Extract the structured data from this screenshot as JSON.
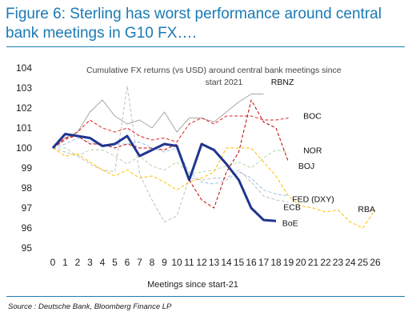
{
  "figure": {
    "title": "Figure 6: Sterling has worst performance around central bank meetings in G10 FX….",
    "source": "Source : Deutsche Bank, Bloomberg Finance LP"
  },
  "colors": {
    "title": "#1a7ab4"
  },
  "chart_data": {
    "type": "line",
    "title": "Cumulative FX returns (vs USD) around central bank meetings since start 2021",
    "title_lines": [
      "Cumulative FX returns (vs USD) around central bank meetings since",
      "start 2021"
    ],
    "xlabel": "Meetings since start-21",
    "ylabel": "",
    "xlim": [
      0,
      26
    ],
    "ylim": [
      95,
      104
    ],
    "x_ticks": [
      0,
      1,
      2,
      3,
      4,
      5,
      6,
      7,
      8,
      9,
      10,
      11,
      12,
      13,
      14,
      15,
      16,
      17,
      18,
      19,
      20,
      21,
      22,
      23,
      24,
      25,
      26
    ],
    "y_ticks": [
      95,
      96,
      97,
      98,
      99,
      100,
      101,
      102,
      103,
      104
    ],
    "grid": false,
    "legend": "direct-labels",
    "series": [
      {
        "name": "RBNZ",
        "color": "#a6a6a6",
        "style": "solid",
        "width": 1,
        "values": [
          100,
          100.5,
          100.8,
          101.8,
          102.4,
          101.6,
          101.2,
          101.4,
          101.0,
          101.8,
          100.8,
          101.5,
          101.5,
          101.3,
          101.8,
          102.3,
          102.7,
          102.7
        ]
      },
      {
        "name": "BOC",
        "color": "#e02020",
        "style": "dash",
        "width": 1,
        "values": [
          100,
          100.4,
          100.8,
          101.4,
          101.0,
          100.8,
          101.0,
          100.6,
          100.4,
          100.5,
          100.3,
          101.2,
          101.5,
          101.2,
          101.6,
          101.6,
          101.6,
          101.4,
          101.4,
          101.5
        ]
      },
      {
        "name": "NOR",
        "color": "#b7d7a8",
        "style": "dash",
        "width": 1,
        "values": [
          100,
          100.0,
          99.6,
          99.9,
          99.9,
          99.6,
          99.2,
          99.6,
          99.1,
          98.9,
          99.3,
          98.7,
          98.8,
          98.9,
          99.1,
          99.3,
          99.0,
          99.5,
          99.9,
          99.8
        ]
      },
      {
        "name": "BOJ",
        "color": "#c00000",
        "style": "dash",
        "width": 1,
        "values": [
          100,
          100.5,
          100.6,
          100.2,
          100.2,
          100.0,
          100.2,
          100.0,
          100.0,
          99.9,
          100.2,
          98.4,
          97.4,
          97.0,
          98.8,
          99.8,
          102.4,
          101.3,
          101.0,
          99.3
        ]
      },
      {
        "name": "FED (DXY)",
        "color": "#9dc3e6",
        "style": "dash",
        "width": 1,
        "values": [
          100,
          100.2,
          100.5,
          100.3,
          100.1,
          100.2,
          100.2,
          100.3,
          100.0,
          99.8,
          100.0,
          98.8,
          98.3,
          98.2,
          98.4,
          98.8,
          98.5,
          97.9,
          97.7,
          97.6
        ]
      },
      {
        "name": "ECB",
        "color": "#bfbfbf",
        "style": "dash",
        "width": 1,
        "values": [
          100,
          99.8,
          99.6,
          99.2,
          98.9,
          98.8,
          103.1,
          98.7,
          97.4,
          96.3,
          96.6,
          98.5,
          98.4,
          98.5,
          98.5,
          98.9,
          98.3,
          97.6,
          97.4,
          97.3
        ]
      },
      {
        "name": "RBA",
        "color": "#ffc000",
        "style": "dash",
        "width": 1,
        "values": [
          100,
          99.6,
          99.7,
          99.3,
          98.9,
          98.6,
          98.9,
          98.5,
          98.6,
          98.3,
          97.9,
          98.3,
          98.5,
          98.8,
          100.0,
          100.0,
          100.0,
          99.3,
          98.6,
          97.6,
          97.1,
          97.0,
          96.8,
          96.9,
          96.3,
          96.0,
          96.9
        ]
      },
      {
        "name": "BoE",
        "color": "#1f3590",
        "style": "solid",
        "width": 3,
        "values": [
          100,
          100.7,
          100.6,
          100.5,
          100.1,
          100.2,
          100.6,
          99.6,
          99.9,
          100.2,
          100.1,
          98.4,
          100.2,
          99.9,
          99.2,
          98.4,
          97.0,
          96.4,
          96.35
        ]
      }
    ]
  }
}
